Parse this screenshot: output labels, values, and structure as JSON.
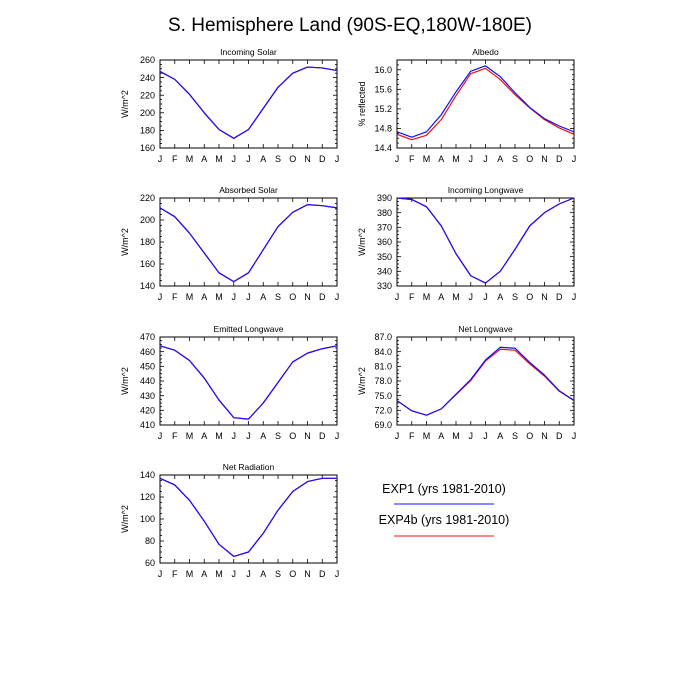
{
  "figure": {
    "title": "S. Hemisphere Land (90S-EQ,180W-180E)"
  },
  "colors": {
    "exp1": "#1010ff",
    "exp4b": "#ee1010",
    "axis": "#000000"
  },
  "legend": {
    "entries": [
      {
        "label": "EXP1 (yrs 1981-2010)",
        "color": "#1010ff"
      },
      {
        "label": "EXP4b (yrs 1981-2010)",
        "color": "#ee1010"
      }
    ]
  },
  "chart_data": [
    {
      "type": "line",
      "title": "Incoming Solar",
      "ylabel": "W/m^2",
      "ylim": [
        160,
        260
      ],
      "yticks": [
        160,
        180,
        200,
        220,
        240,
        260
      ],
      "ytick_decimals": 0,
      "categories": [
        "J",
        "F",
        "M",
        "A",
        "M",
        "J",
        "J",
        "A",
        "S",
        "O",
        "N",
        "D",
        "J"
      ],
      "series": [
        {
          "name": "EXP1 (yrs 1981-2010)",
          "values": [
            247,
            238,
            221,
            200,
            181,
            171,
            181,
            205,
            229,
            245,
            252,
            251,
            248
          ]
        },
        {
          "name": "EXP4b (yrs 1981-2010)",
          "values": [
            247,
            238,
            221,
            200,
            181,
            171,
            181,
            205,
            229,
            245,
            252,
            251,
            248
          ]
        }
      ]
    },
    {
      "type": "line",
      "title": "Albedo",
      "ylabel": "% reflected",
      "ylim": [
        14.4,
        16.2
      ],
      "yticks": [
        14.4,
        14.8,
        15.2,
        15.6,
        16.0
      ],
      "ytick_decimals": 1,
      "categories": [
        "J",
        "F",
        "M",
        "A",
        "M",
        "J",
        "J",
        "A",
        "S",
        "O",
        "N",
        "D",
        "J"
      ],
      "series": [
        {
          "name": "EXP1 (yrs 1981-2010)",
          "values": [
            14.73,
            14.62,
            14.73,
            15.08,
            15.55,
            15.97,
            16.08,
            15.86,
            15.53,
            15.23,
            15.0,
            14.85,
            14.73
          ]
        },
        {
          "name": "EXP4b (yrs 1981-2010)",
          "values": [
            14.68,
            14.57,
            14.66,
            14.98,
            15.47,
            15.92,
            16.03,
            15.8,
            15.49,
            15.22,
            14.98,
            14.81,
            14.68
          ]
        }
      ]
    },
    {
      "type": "line",
      "title": "Absorbed Solar",
      "ylabel": "W/m^2",
      "ylim": [
        140,
        220
      ],
      "yticks": [
        140,
        160,
        180,
        200,
        220
      ],
      "ytick_decimals": 0,
      "categories": [
        "J",
        "F",
        "M",
        "A",
        "M",
        "J",
        "J",
        "A",
        "S",
        "O",
        "N",
        "D",
        "J"
      ],
      "series": [
        {
          "name": "EXP1 (yrs 1981-2010)",
          "values": [
            211,
            203,
            188,
            170,
            152,
            144,
            152,
            173,
            194,
            207,
            214,
            213,
            211
          ]
        },
        {
          "name": "EXP4b (yrs 1981-2010)",
          "values": [
            211,
            203,
            188,
            170,
            152,
            144,
            152,
            173,
            194,
            207,
            214,
            213,
            211
          ]
        }
      ]
    },
    {
      "type": "line",
      "title": "Incoming Longwave",
      "ylabel": "W/m^2",
      "ylim": [
        330,
        390
      ],
      "yticks": [
        330,
        340,
        350,
        360,
        370,
        380,
        390
      ],
      "ytick_decimals": 0,
      "categories": [
        "J",
        "F",
        "M",
        "A",
        "M",
        "J",
        "J",
        "A",
        "S",
        "O",
        "N",
        "D",
        "J"
      ],
      "series": [
        {
          "name": "EXP1 (yrs 1981-2010)",
          "values": [
            390,
            389,
            384,
            371,
            352,
            337,
            332,
            340,
            355,
            371,
            380,
            386,
            390
          ]
        },
        {
          "name": "EXP4b (yrs 1981-2010)",
          "values": [
            390,
            389,
            384,
            371,
            352,
            337,
            332,
            340,
            355,
            371,
            380,
            386,
            390
          ]
        }
      ]
    },
    {
      "type": "line",
      "title": "Emitted Longwave",
      "ylabel": "W/m^2",
      "ylim": [
        410,
        470
      ],
      "yticks": [
        410,
        420,
        430,
        440,
        450,
        460,
        470
      ],
      "ytick_decimals": 0,
      "categories": [
        "J",
        "F",
        "M",
        "A",
        "M",
        "J",
        "J",
        "A",
        "S",
        "O",
        "N",
        "D",
        "J"
      ],
      "series": [
        {
          "name": "EXP1 (yrs 1981-2010)",
          "values": [
            464,
            461,
            454,
            442,
            427,
            415,
            414,
            425,
            439,
            453,
            459,
            462,
            464
          ]
        },
        {
          "name": "EXP4b (yrs 1981-2010)",
          "values": [
            464,
            461,
            454,
            442,
            427,
            415,
            414,
            425,
            439,
            453,
            459,
            462,
            464
          ]
        }
      ]
    },
    {
      "type": "line",
      "title": "Net Longwave",
      "ylabel": "W/m^2",
      "ylim": [
        69.0,
        87.0
      ],
      "yticks": [
        69.0,
        72.0,
        75.0,
        78.0,
        81.0,
        84.0,
        87.0
      ],
      "ytick_decimals": 1,
      "categories": [
        "J",
        "F",
        "M",
        "A",
        "M",
        "J",
        "J",
        "A",
        "S",
        "O",
        "N",
        "D",
        "J"
      ],
      "series": [
        {
          "name": "EXP1 (yrs 1981-2010)",
          "values": [
            74.0,
            71.9,
            71.0,
            72.3,
            75.3,
            78.3,
            82.3,
            84.9,
            84.7,
            81.8,
            79.2,
            76.0,
            74.0
          ]
        },
        {
          "name": "EXP4b (yrs 1981-2010)",
          "values": [
            74.0,
            71.9,
            71.0,
            72.3,
            75.2,
            78.1,
            82.1,
            84.5,
            84.3,
            81.5,
            79.0,
            75.9,
            74.0
          ]
        }
      ]
    },
    {
      "type": "line",
      "title": "Net Radiation",
      "ylabel": "W/m^2",
      "ylim": [
        60,
        140
      ],
      "yticks": [
        60,
        80,
        100,
        120,
        140
      ],
      "ytick_decimals": 0,
      "categories": [
        "J",
        "F",
        "M",
        "A",
        "M",
        "J",
        "J",
        "A",
        "S",
        "O",
        "N",
        "D",
        "J"
      ],
      "series": [
        {
          "name": "EXP1 (yrs 1981-2010)",
          "values": [
            137,
            131,
            117,
            98,
            77,
            66,
            70,
            87,
            108,
            125,
            134,
            137,
            137
          ]
        },
        {
          "name": "EXP4b (yrs 1981-2010)",
          "values": [
            137,
            131,
            117,
            98,
            77,
            66,
            70,
            87,
            108,
            125,
            134,
            137,
            137
          ]
        }
      ]
    }
  ]
}
